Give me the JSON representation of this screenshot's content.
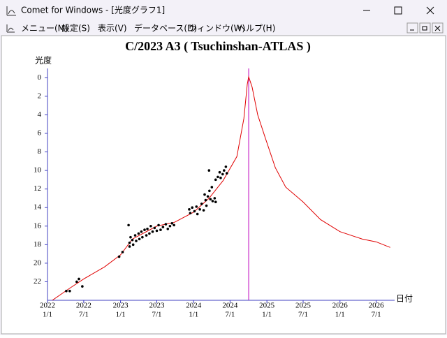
{
  "window": {
    "title": "Comet for Windows - [光度グラフ1]"
  },
  "menu": [
    "メニュー(M)",
    "設定(S)",
    "表示(V)",
    "データベース(D)",
    "ウィンドウ(W)",
    "ヘルプ(H)"
  ],
  "chart_data": {
    "type": "line",
    "title": "C/2023 A3 ( Tsuchinshan-ATLAS )",
    "y_label": "光度",
    "x_label": "日付",
    "xlim": [
      "2022-01-01",
      "2026-10-01"
    ],
    "ylim": [
      24,
      -1
    ],
    "yticks": [
      0,
      2,
      4,
      6,
      8,
      10,
      12,
      14,
      16,
      18,
      20,
      22
    ],
    "xticks": [
      {
        "value": "2022-01-01",
        "label": [
          "2022",
          "1/1"
        ]
      },
      {
        "value": "2022-07-01",
        "label": [
          "2022",
          "7/1"
        ]
      },
      {
        "value": "2023-01-01",
        "label": [
          "2023",
          "1/1"
        ]
      },
      {
        "value": "2023-07-01",
        "label": [
          "2023",
          "7/1"
        ]
      },
      {
        "value": "2024-01-01",
        "label": [
          "2024",
          "1/1"
        ]
      },
      {
        "value": "2024-07-01",
        "label": [
          "2024",
          "7/1"
        ]
      },
      {
        "value": "2025-01-01",
        "label": [
          "2025",
          "1/1"
        ]
      },
      {
        "value": "2025-07-01",
        "label": [
          "2025",
          "7/1"
        ]
      },
      {
        "value": "2026-01-01",
        "label": [
          "2026",
          "1/1"
        ]
      },
      {
        "value": "2026-07-01",
        "label": [
          "2026",
          "7/1"
        ]
      }
    ],
    "axis_color": "#4040c0",
    "vline_x": "2024-10-02",
    "vline_color": "#c000c0",
    "series": [
      {
        "type": "line",
        "color": "#e00000",
        "x": [
          "2022-01-25",
          "2022-04-22",
          "2022-07-01",
          "2022-10-13",
          "2023-01-01",
          "2023-03-01",
          "2023-07-01",
          "2023-09-26",
          "2024-01-01",
          "2024-03-18",
          "2024-05-27",
          "2024-08-04",
          "2024-09-08",
          "2024-09-25",
          "2024-10-02",
          "2024-10-19",
          "2024-11-16",
          "2024-12-21",
          "2025-02-12",
          "2025-04-05",
          "2025-07-01",
          "2025-09-26",
          "2026-01-01",
          "2026-04-23",
          "2026-07-01",
          "2026-09-09"
        ],
        "values": [
          24,
          22.7,
          21.7,
          20.4,
          19.1,
          17.4,
          16.0,
          15.6,
          14.5,
          13.0,
          11.1,
          8.5,
          4.4,
          0.7,
          -0.1,
          1.0,
          4.0,
          6.3,
          9.7,
          11.8,
          13.4,
          15.3,
          16.6,
          17.4,
          17.7,
          18.3
        ]
      },
      {
        "type": "scatter",
        "color": "#000000",
        "x": [
          "2022-04-05",
          "2022-04-22",
          "2022-05-27",
          "2022-06-07",
          "2022-06-24",
          "2022-12-25",
          "2023-01-11",
          "2023-02-10",
          "2023-02-15",
          "2023-02-15",
          "2023-02-20",
          "2023-03-01",
          "2023-03-05",
          "2023-03-15",
          "2023-03-20",
          "2023-04-01",
          "2023-04-05",
          "2023-04-15",
          "2023-04-20",
          "2023-05-01",
          "2023-05-10",
          "2023-05-15",
          "2023-05-25",
          "2023-06-01",
          "2023-06-10",
          "2023-06-20",
          "2023-07-01",
          "2023-07-10",
          "2023-07-20",
          "2023-08-01",
          "2023-08-15",
          "2023-08-25",
          "2023-09-05",
          "2023-09-15",
          "2023-09-25",
          "2023-12-10",
          "2023-12-15",
          "2023-12-25",
          "2024-01-05",
          "2024-01-15",
          "2024-01-20",
          "2024-02-01",
          "2024-02-10",
          "2024-02-20",
          "2024-02-25",
          "2024-03-01",
          "2024-03-05",
          "2024-03-12",
          "2024-03-18",
          "2024-03-20",
          "2024-03-25",
          "2024-04-01",
          "2024-04-05",
          "2024-04-15",
          "2024-04-20",
          "2024-04-20",
          "2024-05-01",
          "2024-05-10",
          "2024-05-15",
          "2024-05-25",
          "2024-06-01",
          "2024-06-10",
          "2024-06-15"
        ],
        "values": [
          23.0,
          23.0,
          22.0,
          21.7,
          22.5,
          19.3,
          18.8,
          15.9,
          17.8,
          18.2,
          17.2,
          17.5,
          18.0,
          17.0,
          17.6,
          16.8,
          17.4,
          16.6,
          17.2,
          16.4,
          17.0,
          16.3,
          16.8,
          16.0,
          16.6,
          16.2,
          16.5,
          15.9,
          16.4,
          16.1,
          15.8,
          16.3,
          16.0,
          15.7,
          15.9,
          14.2,
          14.6,
          14.0,
          14.4,
          13.9,
          14.7,
          14.2,
          13.6,
          14.3,
          12.6,
          13.2,
          13.8,
          12.8,
          10.0,
          12.2,
          13.1,
          11.8,
          13.3,
          13.0,
          11.0,
          13.4,
          10.7,
          10.2,
          10.8,
          10.4,
          10.0,
          9.6,
          10.3
        ]
      }
    ]
  }
}
